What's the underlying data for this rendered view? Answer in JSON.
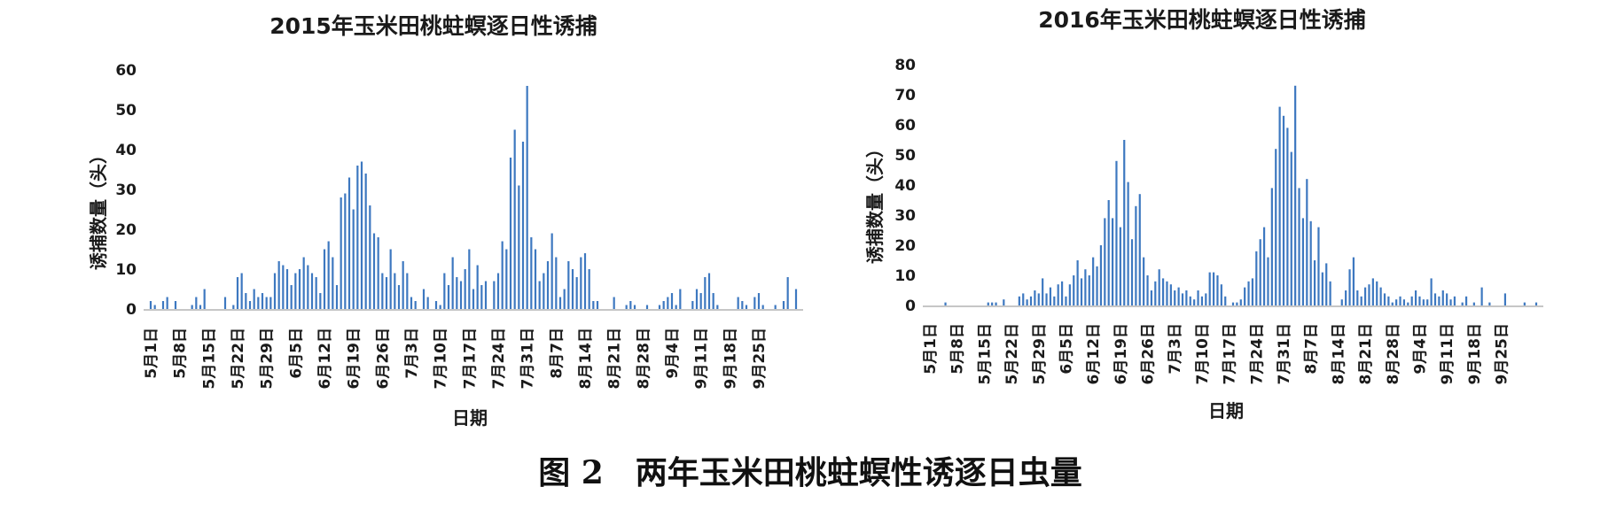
{
  "figure_caption": "图 2　两年玉米田桃蛀螟性诱逐日虫量",
  "colors": {
    "bar": "#3d78c0",
    "axis": "#8c8c8c",
    "text": "#1a1a1a"
  },
  "chart_data": [
    {
      "type": "bar",
      "title": "2015年玉米田桃蛀螟逐日性诱捕",
      "xlabel": "日期",
      "ylabel": "诱捕数量（头）",
      "ylim": [
        0,
        60
      ],
      "yticks": [
        0,
        10,
        20,
        30,
        40,
        50,
        60
      ],
      "tick_labels": [
        "5月1日",
        "5月8日",
        "5月15日",
        "5月22日",
        "5月29日",
        "6月5日",
        "6月12日",
        "6月19日",
        "6月26日",
        "7月3日",
        "7月10日",
        "7月17日",
        "7月24日",
        "7月31日",
        "8月7日",
        "8月14日",
        "8月21日",
        "8月28日",
        "9月4日",
        "9月11日",
        "9月18日",
        "9月25日"
      ],
      "tick_positions": [
        0,
        7,
        14,
        21,
        28,
        35,
        42,
        49,
        56,
        63,
        70,
        77,
        84,
        91,
        98,
        105,
        112,
        119,
        126,
        133,
        140,
        147
      ],
      "grid": false,
      "legend": "none",
      "x_start": "5月1日",
      "values": [
        2,
        1,
        0,
        2,
        3,
        0,
        2,
        0,
        0,
        0,
        1,
        3,
        1,
        5,
        0,
        0,
        0,
        0,
        3,
        0,
        1,
        8,
        9,
        4,
        2,
        5,
        3,
        4,
        3,
        3,
        9,
        12,
        11,
        10,
        6,
        9,
        10,
        13,
        11,
        9,
        8,
        4,
        15,
        17,
        13,
        6,
        28,
        29,
        33,
        25,
        36,
        37,
        34,
        26,
        19,
        18,
        9,
        8,
        15,
        9,
        6,
        12,
        9,
        3,
        2,
        0,
        5,
        3,
        0,
        2,
        1,
        9,
        6,
        13,
        8,
        7,
        10,
        15,
        5,
        11,
        6,
        7,
        0,
        7,
        9,
        17,
        15,
        38,
        45,
        31,
        42,
        56,
        18,
        15,
        7,
        9,
        12,
        19,
        13,
        3,
        5,
        12,
        10,
        8,
        13,
        14,
        10,
        2,
        2,
        0,
        0,
        0,
        3,
        0,
        0,
        1,
        2,
        1,
        0,
        0,
        1,
        0,
        0,
        1,
        2,
        3,
        4,
        1,
        5,
        0,
        0,
        2,
        5,
        4,
        8,
        9,
        4,
        1,
        0,
        0,
        0,
        0,
        3,
        2,
        1,
        0,
        3,
        4,
        1,
        0,
        0,
        1,
        0,
        2,
        8,
        0,
        5
      ]
    },
    {
      "type": "bar",
      "title": "2016年玉米田桃蛀螟逐日性诱捕",
      "xlabel": "日期",
      "ylabel": "诱捕数量（头）",
      "ylim": [
        0,
        80
      ],
      "yticks": [
        0,
        10,
        20,
        30,
        40,
        50,
        60,
        70,
        80
      ],
      "tick_labels": [
        "5月1日",
        "5月8日",
        "5月15日",
        "5月22日",
        "5月29日",
        "6月5日",
        "6月12日",
        "6月19日",
        "6月26日",
        "7月3日",
        "7月10日",
        "7月17日",
        "7月24日",
        "7月31日",
        "8月7日",
        "8月14日",
        "8月21日",
        "8月28日",
        "9月4日",
        "9月11日",
        "9月18日",
        "9月25日"
      ],
      "tick_positions": [
        0,
        7,
        14,
        21,
        28,
        35,
        42,
        49,
        56,
        63,
        70,
        77,
        84,
        91,
        98,
        105,
        112,
        119,
        126,
        133,
        140,
        147
      ],
      "grid": false,
      "legend": "none",
      "x_start": "5月1日",
      "values": [
        0,
        0,
        0,
        0,
        1,
        0,
        0,
        0,
        0,
        0,
        0,
        0,
        0,
        0,
        0,
        1,
        1,
        1,
        0,
        2,
        0,
        0,
        0,
        3,
        4,
        2,
        3,
        5,
        4,
        9,
        4,
        6,
        3,
        7,
        8,
        3,
        7,
        10,
        15,
        9,
        12,
        10,
        16,
        13,
        20,
        29,
        35,
        29,
        48,
        26,
        55,
        41,
        22,
        33,
        37,
        16,
        10,
        5,
        8,
        12,
        9,
        8,
        7,
        5,
        6,
        4,
        5,
        3,
        2,
        5,
        3,
        4,
        11,
        11,
        10,
        7,
        3,
        0,
        1,
        1,
        2,
        6,
        8,
        9,
        18,
        22,
        26,
        16,
        39,
        52,
        66,
        63,
        59,
        51,
        73,
        39,
        29,
        42,
        28,
        15,
        26,
        11,
        14,
        8,
        0,
        0,
        2,
        5,
        12,
        16,
        5,
        3,
        6,
        7,
        9,
        8,
        6,
        4,
        3,
        1,
        2,
        3,
        2,
        1,
        3,
        5,
        3,
        2,
        2,
        9,
        4,
        3,
        5,
        4,
        2,
        3,
        0,
        1,
        3,
        0,
        1,
        0,
        6,
        0,
        1,
        0,
        0,
        0,
        4,
        0,
        0,
        0,
        0,
        1,
        0,
        0,
        1
      ]
    }
  ]
}
